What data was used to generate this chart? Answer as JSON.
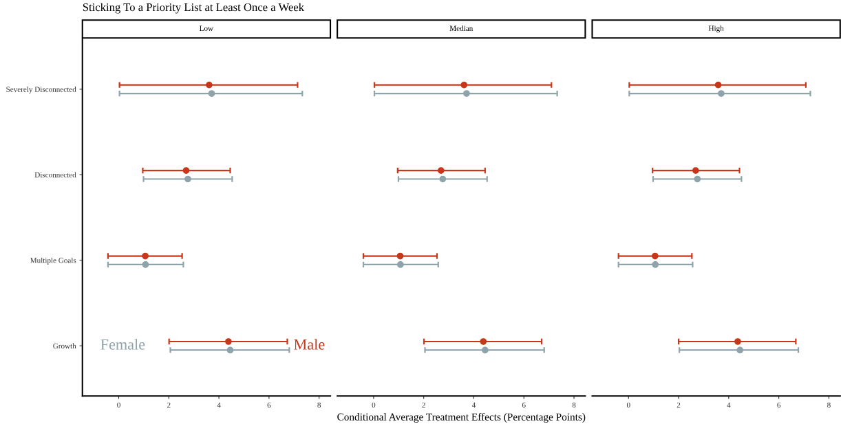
{
  "chart_data": [
    {
      "type": "scatter",
      "orientation": "horizontal",
      "title": "Sticking To a Priority List at Least Once a Week",
      "subtitle": "Low",
      "categories": [
        "Severely Disconnected",
        "Disconnected",
        "Multiple Goals",
        "Growth"
      ],
      "xlim": [
        -1.45,
        8.45
      ],
      "xticks": [
        0,
        2,
        4,
        6,
        8
      ],
      "marker": "circle",
      "grid": false,
      "legend": false,
      "series": [
        {
          "name": "Male",
          "color": "#c8371a",
          "values": [
            3.61,
            2.69,
            1.06,
            4.38
          ],
          "errors": [
            [
              0.03,
              7.14
            ],
            [
              0.96,
              4.45
            ],
            [
              -0.43,
              2.53
            ],
            [
              2.01,
              6.73
            ]
          ]
        },
        {
          "name": "Female",
          "color": "#8fa3ab",
          "values": [
            3.71,
            2.76,
            1.07,
            4.45
          ],
          "errors": [
            [
              0.03,
              7.33
            ],
            [
              0.99,
              4.53
            ],
            [
              -0.43,
              2.58
            ],
            [
              2.06,
              6.81
            ]
          ]
        }
      ]
    },
    {
      "type": "scatter",
      "orientation": "horizontal",
      "subtitle": "Median",
      "xlabel": "Conditional Average Treatment Effects (Percentage Points)",
      "xlim": [
        -1.45,
        8.45
      ],
      "xticks": [
        0,
        2,
        4,
        6,
        8
      ],
      "tick_labels": "x",
      "marker": "circle",
      "grid": false,
      "legend": false,
      "series": [
        {
          "color": "#c8371a",
          "values": [
            3.61,
            2.69,
            1.06,
            4.38
          ],
          "errors": [
            [
              0.03,
              7.1
            ],
            [
              0.96,
              4.45
            ],
            [
              -0.41,
              2.53
            ],
            [
              2.01,
              6.71
            ]
          ]
        },
        {
          "color": "#8fa3ab",
          "values": [
            3.71,
            2.76,
            1.07,
            4.45
          ],
          "errors": [
            [
              0.03,
              7.33
            ],
            [
              0.99,
              4.53
            ],
            [
              -0.41,
              2.58
            ],
            [
              2.05,
              6.81
            ]
          ]
        }
      ]
    },
    {
      "type": "scatter",
      "orientation": "horizontal",
      "subtitle": "High",
      "xlim": [
        -1.45,
        8.45
      ],
      "xticks": [
        0,
        2,
        4,
        6,
        8
      ],
      "tick_labels": "x",
      "marker": "circle",
      "grid": false,
      "legend": false,
      "series": [
        {
          "color": "#c8371a",
          "values": [
            3.58,
            2.68,
            1.06,
            4.36
          ],
          "errors": [
            [
              0.03,
              7.08
            ],
            [
              0.96,
              4.43
            ],
            [
              -0.4,
              2.53
            ],
            [
              2.0,
              6.68
            ]
          ]
        },
        {
          "color": "#8fa3ab",
          "values": [
            3.7,
            2.75,
            1.07,
            4.45
          ],
          "errors": [
            [
              0.03,
              7.26
            ],
            [
              0.98,
              4.51
            ],
            [
              -0.4,
              2.56
            ],
            [
              2.03,
              6.78
            ]
          ]
        }
      ]
    }
  ]
}
